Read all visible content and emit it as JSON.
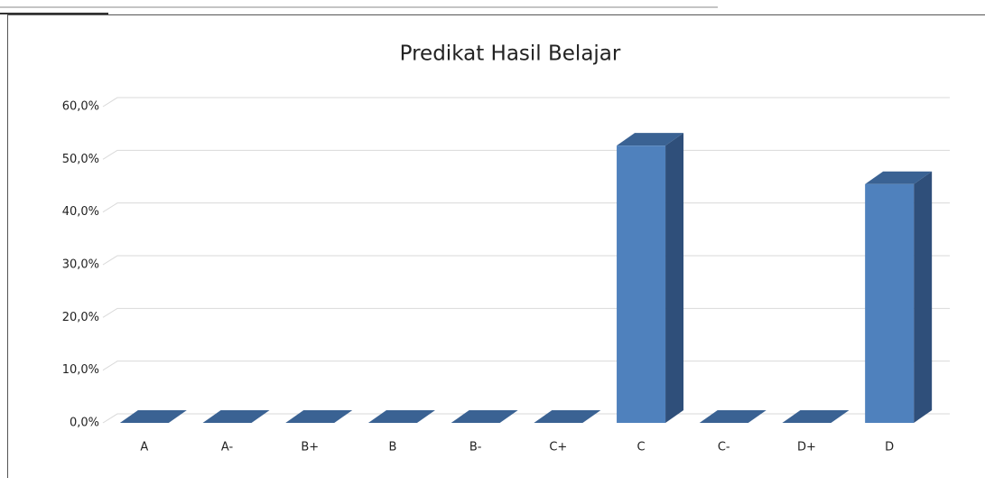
{
  "chart_data": {
    "type": "bar",
    "title": "Predikat Hasil Belajar",
    "categories": [
      "A",
      "A-",
      "B+",
      "B",
      "B-",
      "C+",
      "C",
      "C-",
      "D+",
      "D"
    ],
    "values": [
      0,
      0,
      0,
      0,
      0,
      0,
      52.6,
      0,
      0,
      45.3
    ],
    "color": "#4f81bd",
    "ylim": [
      0,
      60
    ],
    "yticks": [
      {
        "value": 0,
        "label": "0,0%"
      },
      {
        "value": 10,
        "label": "10,0%"
      },
      {
        "value": 20,
        "label": "20,0%"
      },
      {
        "value": 30,
        "label": "30,0%"
      },
      {
        "value": 40,
        "label": "40,0%"
      },
      {
        "value": 50,
        "label": "50,0%"
      },
      {
        "value": 60,
        "label": "60,0%"
      }
    ],
    "grid": true
  }
}
